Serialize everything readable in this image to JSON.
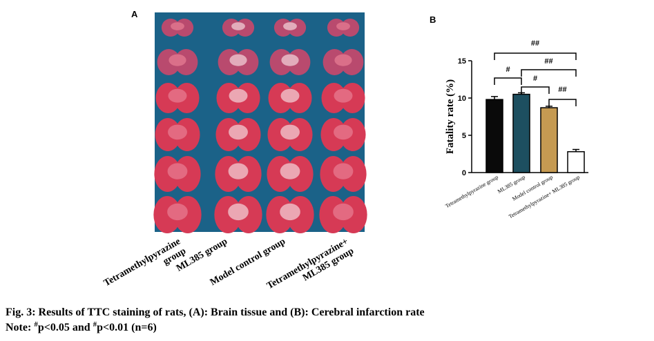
{
  "panel_a": {
    "label": "A",
    "group_labels": [
      [
        "Tetramethylpyrazine",
        "group"
      ],
      [
        "ML385 group"
      ],
      [
        "Model control group"
      ],
      [
        "Tetramethylpyrazine+",
        "ML385 group"
      ]
    ]
  },
  "chart_data": {
    "type": "bar",
    "label": "B",
    "y_label": "Fatality rate (%)",
    "categories": [
      "Tetramethylpyrazine group",
      "ML385 group",
      "Model control group",
      "Tetramethylpyrazine+ ML385 group"
    ],
    "values": [
      9.8,
      10.5,
      8.7,
      2.8
    ],
    "errors": [
      0.4,
      0.2,
      0.2,
      0.3
    ],
    "colors": [
      "#0a0a0a",
      "#1d4f60",
      "#c59a52",
      "#ffffff"
    ],
    "ylim": [
      0,
      15
    ],
    "yticks": [
      0,
      5,
      10,
      15
    ],
    "annotations": [
      "##",
      "#",
      "##",
      "#",
      "##"
    ]
  },
  "caption": {
    "title": "Fig. 3: Results of TTC staining of rats, (A): Brain tissue and (B): Cerebral infarction rate",
    "note": [
      "Note: ",
      "#",
      "p<0.05 and ",
      "#",
      "p<0.01 (n=6)"
    ]
  }
}
